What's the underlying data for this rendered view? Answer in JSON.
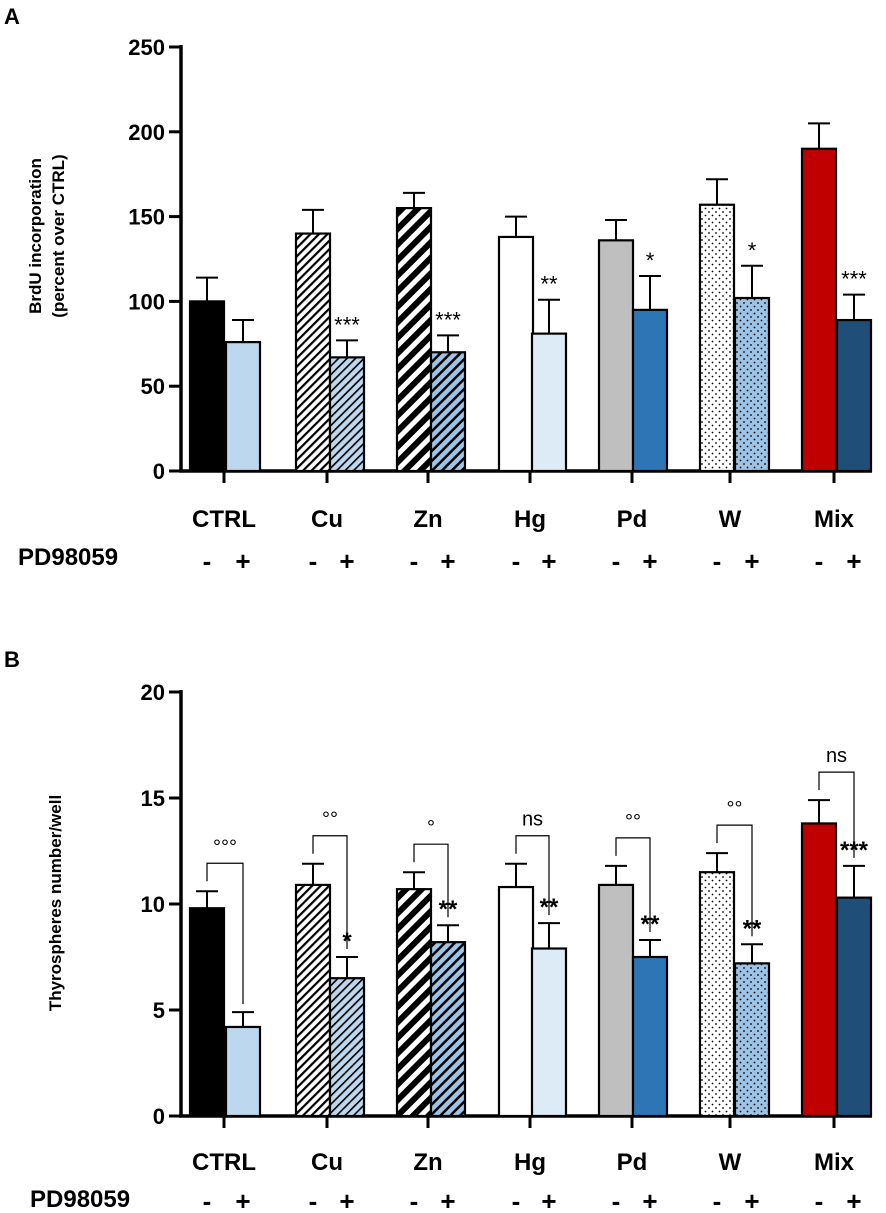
{
  "chart_data": [
    {
      "panel": "A",
      "type": "bar",
      "title": "",
      "ylabel": "BrdU incorporation\n(percent over CTRL)",
      "ylabel_lines": [
        "BrdU incorporation",
        "(percent over CTRL)"
      ],
      "xlabel": "",
      "ylim": [
        0,
        250
      ],
      "yticks": [
        0,
        50,
        100,
        150,
        200,
        250
      ],
      "categories": [
        "CTRL",
        "Cu",
        "Zn",
        "Hg",
        "Pd",
        "W",
        "Mix"
      ],
      "treatment_label": "PD98059",
      "treatment_marks": [
        "-",
        "+"
      ],
      "series": [
        {
          "name": "PD98059 -",
          "values": [
            100,
            140,
            155,
            138,
            136,
            157,
            190
          ],
          "errors": [
            14,
            14,
            9,
            12,
            12,
            15,
            15
          ]
        },
        {
          "name": "PD98059 +",
          "values": [
            76,
            67,
            70,
            81,
            95,
            102,
            89
          ],
          "errors": [
            13,
            10,
            10,
            20,
            20,
            19,
            15
          ]
        }
      ],
      "significance_plus": [
        "",
        "***",
        "***",
        "**",
        "*",
        "*",
        "***"
      ],
      "brackets": []
    },
    {
      "panel": "B",
      "type": "bar",
      "title": "",
      "ylabel": "Thyrospheres number/well",
      "ylabel_lines": [
        "Thyrospheres number/well"
      ],
      "xlabel": "",
      "ylim": [
        0,
        20
      ],
      "yticks": [
        0,
        5,
        10,
        15,
        20
      ],
      "categories": [
        "CTRL",
        "Cu",
        "Zn",
        "Hg",
        "Pd",
        "W",
        "Mix"
      ],
      "treatment_label": "PD98059",
      "treatment_marks": [
        "-",
        "+"
      ],
      "series": [
        {
          "name": "PD98059 -",
          "values": [
            9.8,
            10.9,
            10.7,
            10.8,
            10.9,
            11.5,
            13.8
          ],
          "errors": [
            0.8,
            1.0,
            0.8,
            1.1,
            0.9,
            0.9,
            1.1
          ]
        },
        {
          "name": "PD98059 +",
          "values": [
            4.2,
            6.5,
            8.2,
            7.9,
            7.5,
            7.2,
            10.3
          ],
          "errors": [
            0.7,
            1.0,
            0.8,
            1.2,
            0.8,
            0.9,
            1.5
          ]
        }
      ],
      "significance_plus": [
        "",
        "*",
        "**",
        "**",
        "**",
        "**",
        "***"
      ],
      "brackets": [
        "°°°",
        "°°",
        "°",
        "ns",
        "°°",
        "°°",
        "ns"
      ]
    }
  ],
  "colors": {
    "ctrl_minus": "#000000",
    "ctrl_plus": "#bdd7ee",
    "hg_plus": "#ddebf7",
    "pd_minus": "#bfbfbf",
    "pd_plus": "#2e75b6",
    "w_plus": "#9dc3e6",
    "mix_minus": "#c00000",
    "mix_plus": "#1f4e79"
  }
}
